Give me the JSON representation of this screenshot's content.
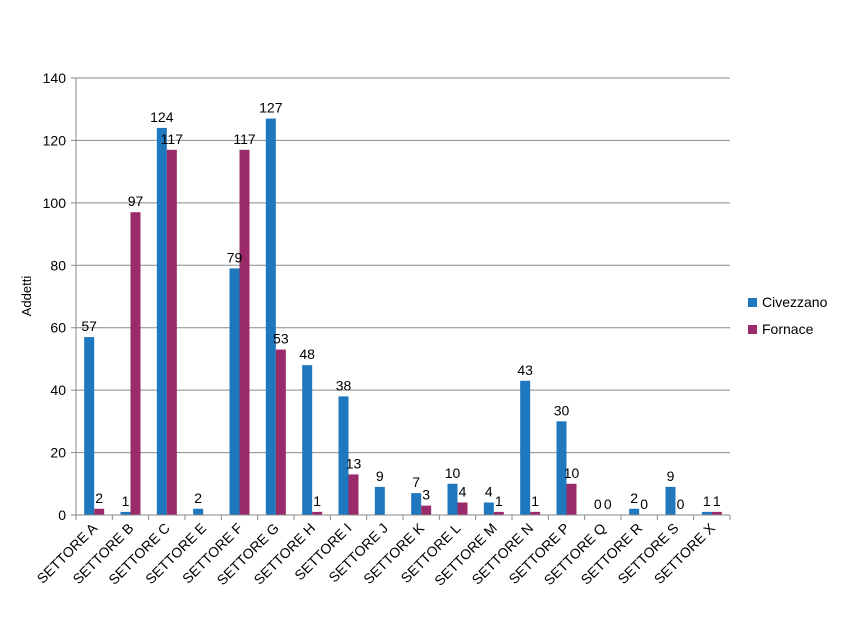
{
  "chart_data": {
    "type": "bar",
    "title": "",
    "xlabel": "",
    "ylabel": "Addetti",
    "ylim": [
      0,
      140
    ],
    "yticks": [
      0,
      20,
      40,
      60,
      80,
      100,
      120,
      140
    ],
    "grid": true,
    "legend_position": "right",
    "categories": [
      "SETTORE A",
      "SETTORE B",
      "SETTORE C",
      "SETTORE E",
      "SETTORE F",
      "SETTORE G",
      "SETTORE H",
      "SETTORE I",
      "SETTORE J",
      "SETTORE K",
      "SETTORE L",
      "SETTORE M",
      "SETTORE N",
      "SETTORE P",
      "SETTORE Q",
      "SETTORE R",
      "SETTORE S",
      "SETTORE X"
    ],
    "series": [
      {
        "name": "Civezzano",
        "color": "#1F77BE",
        "values": [
          57,
          1,
          124,
          2,
          79,
          127,
          48,
          38,
          9,
          7,
          10,
          4,
          43,
          30,
          0,
          2,
          9,
          1
        ],
        "labels": [
          "57",
          "1",
          "124",
          "2",
          "79",
          "127",
          "48",
          "38",
          "9",
          "7",
          "10",
          "4",
          "43",
          "30",
          "0",
          "2",
          "9",
          "1"
        ]
      },
      {
        "name": "Fornace",
        "color": "#9B2A6A",
        "values": [
          2,
          97,
          117,
          null,
          117,
          53,
          1,
          13,
          null,
          3,
          4,
          1,
          1,
          10,
          0,
          0,
          0,
          1
        ],
        "labels": [
          "2",
          "97",
          "117",
          "",
          "117",
          "53",
          "1",
          "13",
          "",
          "3",
          "4",
          "1",
          "1",
          "10",
          "0",
          "0",
          "0",
          "1"
        ]
      }
    ]
  }
}
